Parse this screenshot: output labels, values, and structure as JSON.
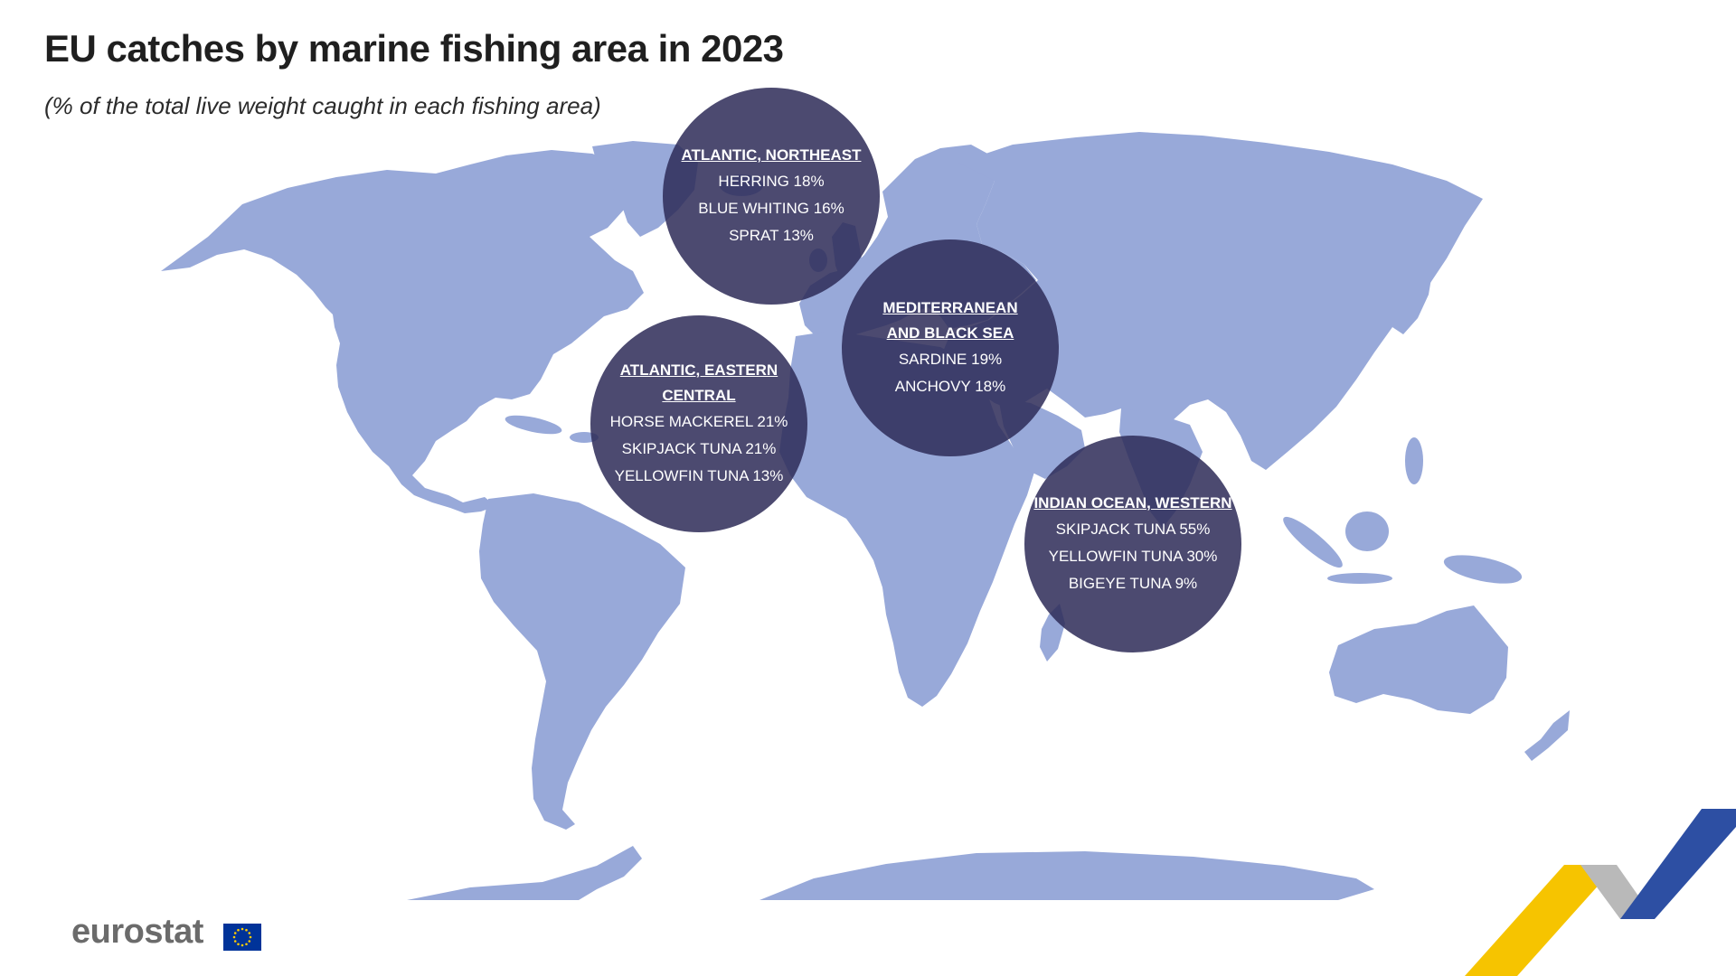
{
  "header": {
    "title": "EU catches by marine fishing area in 2023",
    "subtitle": "(% of the total live weight caught in each fishing area)"
  },
  "colors": {
    "land": "#98a9d9",
    "bubble": "#2f2c58",
    "text": "#1f1f1f",
    "logo_text": "#6b6b6b",
    "flag_blue": "#003399",
    "flag_star": "#ffcc00",
    "corner_yellow": "#f6c400",
    "corner_grey": "#b9b9b9",
    "corner_blue": "#2d4fa3"
  },
  "areas": [
    {
      "name": "ATLANTIC, NORTHEAST",
      "species": [
        "HERRING 18%",
        "BLUE WHITING 16%",
        "SPRAT 13%"
      ]
    },
    {
      "name": "MEDITERRANEAN\nAND BLACK SEA",
      "species": [
        "SARDINE 19%",
        "ANCHOVY 18%"
      ]
    },
    {
      "name": "ATLANTIC, EASTERN CENTRAL",
      "species": [
        "HORSE MACKEREL 21%",
        "SKIPJACK TUNA 21%",
        "YELLOWFIN TUNA 13%"
      ]
    },
    {
      "name": "INDIAN OCEAN, WESTERN",
      "species": [
        "SKIPJACK TUNA 55%",
        "YELLOWFIN TUNA 30%",
        "BIGEYE TUNA 9%"
      ]
    }
  ],
  "footer": {
    "logo": "eurostat",
    "flag_icon": "eu-flag-icon",
    "corner_icon": "eurostat-corner-chevron-icon"
  }
}
